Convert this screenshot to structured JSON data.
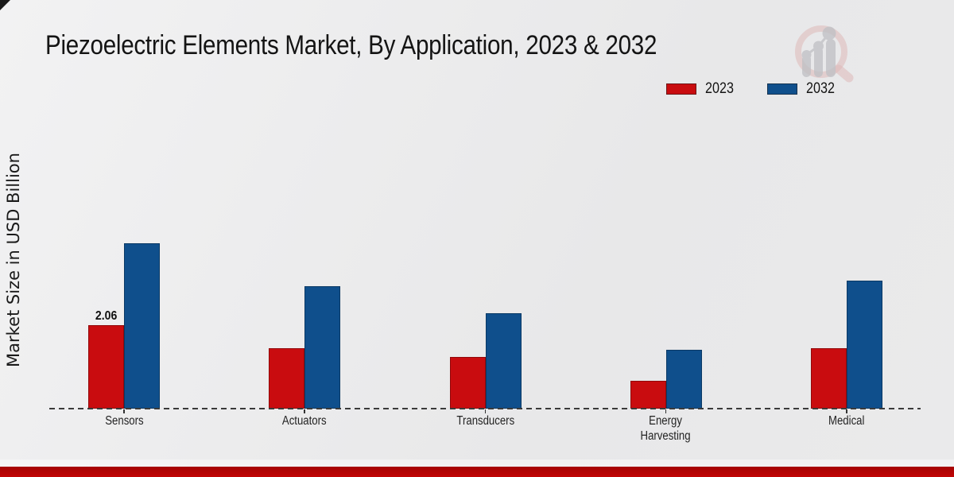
{
  "page": {
    "title": "Piezoelectric Elements Market, By Application, 2023 & 2032",
    "y_axis_label": "Market Size in USD Billion",
    "watermark_icon": "magnifier-growth-chart-logo",
    "footer_bar_color": "#c10505",
    "corner_mark_color": "#1a1a1a"
  },
  "legend": {
    "position": "top-right",
    "items": [
      {
        "label": "2023",
        "color": "#c90c0f"
      },
      {
        "label": "2032",
        "color": "#0f4f8c"
      }
    ]
  },
  "chart_data": {
    "type": "bar",
    "title": "Piezoelectric Elements Market, By Application, 2023 & 2032",
    "categories": [
      "Sensors",
      "Actuators",
      "Transducers",
      "Energy Harvesting",
      "Medical"
    ],
    "series": [
      {
        "name": "2023",
        "color": "#c90c0f",
        "values": [
          2.06,
          1.49,
          1.26,
          0.69,
          1.49
        ]
      },
      {
        "name": "2032",
        "color": "#0f4f8c",
        "values": [
          4.06,
          3.0,
          2.35,
          1.44,
          3.15
        ]
      }
    ],
    "xlabel": "",
    "ylabel": "Market Size in USD Billion",
    "ylim": [
      0,
      4.5
    ],
    "grid": false,
    "axis_style": "dashed-baseline-only",
    "legend_position": "top-right",
    "data_labels": [
      {
        "category": "Sensors",
        "series": "2023",
        "text": "2.06"
      }
    ]
  }
}
